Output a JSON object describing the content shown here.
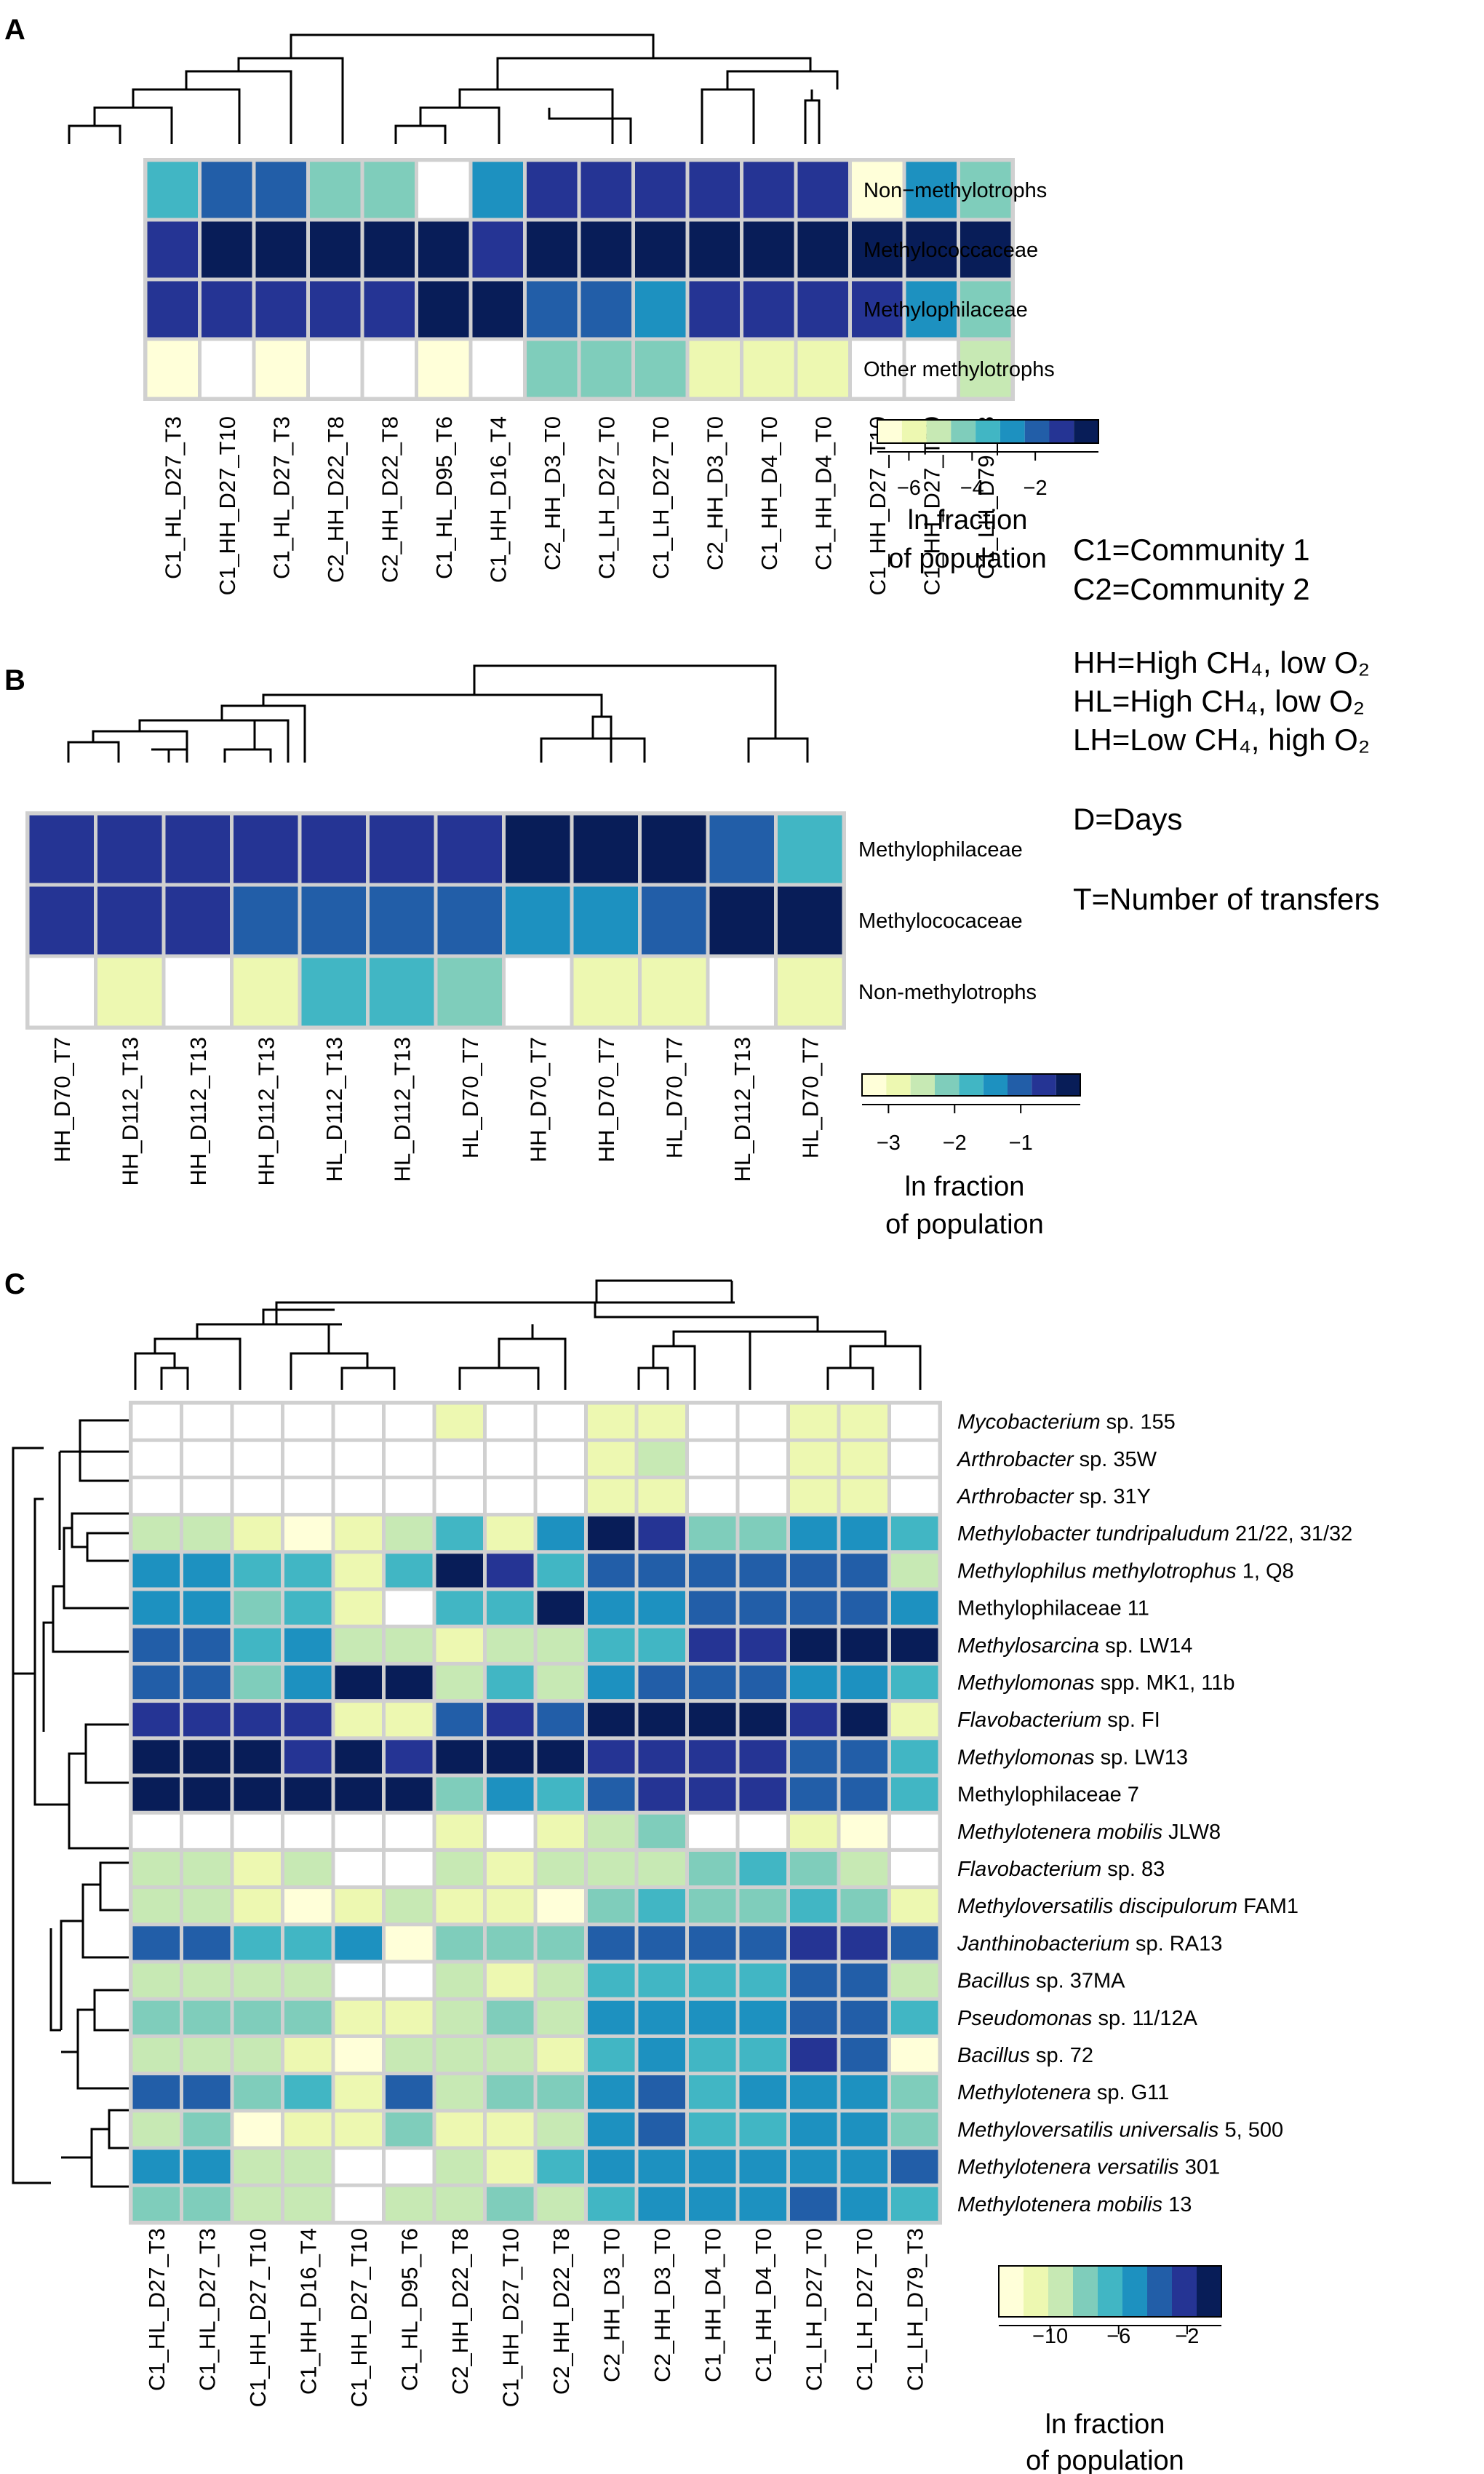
{
  "figure": {
    "key_lines": [
      "C1=Community 1",
      "C2=Community 2",
      "HH=High CH₄, low O₂",
      "HL=High CH₄, low O₂",
      "LH=Low CH₄, high O₂",
      "D=Days",
      "T=Number of transfers"
    ],
    "legend_title_1": "ln fraction",
    "legend_title_2": "of population",
    "palette": [
      "#ffffd9",
      "#edf8b1",
      "#c7e9b4",
      "#7fcdbb",
      "#41b6c4",
      "#1d91c0",
      "#225ea8",
      "#253494",
      "#081d58"
    ]
  },
  "chart_data": [
    {
      "panel": "A",
      "type": "heatmap",
      "columns": [
        "C1_HL_D27_T3",
        "C1_HH_D27_T10",
        "C1_HL_D27_T3",
        "C2_HH_D22_T8",
        "C2_HH_D22_T8",
        "C1_HL_D95_T6",
        "C1_HH_D16_T4",
        "C2_HH_D3_T0",
        "C1_LH_D27_T0",
        "C1_LH_D27_T0",
        "C2_HH_D3_T0",
        "C1_HH_D4_T0",
        "C1_HH_D4_T0",
        "C1_HH_D27_T10",
        "C1_HH_D27_T10",
        "C1_LH_D79_T3"
      ],
      "rows": [
        "Non−methylotrophs",
        "Methylococcaceae",
        "Methylophilaceae",
        "Other methylotrophs"
      ],
      "colorbar": {
        "ticks": [
          -6,
          -4,
          -2
        ],
        "vmin": -7,
        "vmax": 0
      },
      "values": [
        [
          -3.3,
          -1.8,
          -1.8,
          -4.1,
          -3.9,
          -7.0,
          -2.8,
          -1.1,
          -1.1,
          -1.0,
          -1.0,
          -1.1,
          -1.0,
          -6.3,
          -2.8,
          -4.6
        ],
        [
          -0.9,
          -0.3,
          -0.6,
          -0.7,
          -0.3,
          -0.5,
          -0.8,
          -0.3,
          -0.3,
          -0.3,
          -0.3,
          -0.4,
          -0.5,
          -0.3,
          -0.3,
          -0.3
        ],
        [
          -1.0,
          -0.9,
          -0.9,
          -0.9,
          -0.9,
          -0.3,
          -0.2,
          -1.7,
          -1.6,
          -2.8,
          -1.0,
          -1.0,
          -1.0,
          -0.8,
          -2.8,
          -4.6
        ],
        [
          -6.3,
          -7.0,
          -6.3,
          -7.0,
          -7.0,
          -6.3,
          -7.0,
          -4.6,
          -4.0,
          -4.6,
          -5.6,
          -6.2,
          -5.8,
          -7.0,
          -7.0,
          -4.7
        ]
      ]
    },
    {
      "panel": "B",
      "type": "heatmap",
      "columns": [
        "HH_D70_T7",
        "HH_D112_T13",
        "HH_D112_T13",
        "HH_D112_T13",
        "HL_D112_T13",
        "HL_D112_T13",
        "HL_D70_T7",
        "HH_D70_T7",
        "HH_D70_T7",
        "HL_D70_T7",
        "HL_D112_T13",
        "HL_D70_T7"
      ],
      "rows": [
        "Methylophilaceae",
        "Methylococaceae",
        "Non-methylotrophs"
      ],
      "colorbar": {
        "ticks": [
          -3,
          -2,
          -1
        ],
        "vmin": -3.4,
        "vmax": -0.1
      },
      "values": [
        [
          -0.5,
          -0.5,
          -0.5,
          -0.5,
          -0.5,
          -0.5,
          -0.5,
          -0.15,
          -0.15,
          -0.15,
          -0.9,
          -1.7
        ],
        [
          -0.5,
          -0.5,
          -0.5,
          -0.9,
          -0.9,
          -0.9,
          -0.9,
          -1.45,
          -1.45,
          -0.9,
          -0.15,
          -0.15
        ],
        [
          -3.4,
          -2.7,
          -3.4,
          -2.7,
          -1.75,
          -1.75,
          -2.15,
          -3.4,
          -2.7,
          -2.7,
          -3.4,
          -2.95
        ]
      ]
    },
    {
      "panel": "C",
      "type": "heatmap",
      "columns": [
        "C1_HL_D27_T3",
        "C1_HL_D27_T3",
        "C1_HH_D27_T10",
        "C1_HH_D16_T4",
        "C1_HH_D27_T10",
        "C1_HL_D95_T6",
        "C2_HH_D22_T8",
        "C1_HH_D27_T10",
        "C2_HH_D22_T8",
        "C2_HH_D3_T0",
        "C2_HH_D3_T0",
        "C1_HH_D4_T0",
        "C1_HH_D4_T0",
        "C1_LH_D27_T0",
        "C1_LH_D27_T0",
        "C1_LH_D79_T3"
      ],
      "rows": [
        {
          "name": "Mycobacterium",
          "suffix": " sp. 155"
        },
        {
          "name": "Arthrobacter",
          "suffix": " sp. 35W"
        },
        {
          "name": "Arthrobacter",
          "suffix": " sp. 31Y"
        },
        {
          "name": "Methylobacter tundripaludum",
          "suffix": " 21/22, 31/32"
        },
        {
          "name": "Methylophilus methylotrophus",
          "suffix": " 1, Q8"
        },
        {
          "name": "",
          "suffix": "Methylophilaceae 11"
        },
        {
          "name": "Methylosarcina",
          "suffix": " sp. LW14"
        },
        {
          "name": "Methylomonas",
          "suffix": " spp. MK1, 11b"
        },
        {
          "name": "Flavobacterium",
          "suffix": " sp. FI"
        },
        {
          "name": "Methylomonas",
          "suffix": " sp. LW13"
        },
        {
          "name": "",
          "suffix": "Methylophilaceae 7"
        },
        {
          "name": "Methylotenera mobilis",
          "suffix": " JLW8"
        },
        {
          "name": "Flavobacterium",
          "suffix": " sp. 83"
        },
        {
          "name": "Methyloversatilis discipulorum",
          "suffix": " FAM1"
        },
        {
          "name": "Janthinobacterium",
          "suffix": " sp. RA13"
        },
        {
          "name": "Bacillus",
          "suffix": " sp. 37MA"
        },
        {
          "name": "Pseudomonas",
          "suffix": " sp. 11/12A"
        },
        {
          "name": "Bacillus",
          "suffix": " sp. 72"
        },
        {
          "name": "Methylotenera",
          "suffix": " sp. G11"
        },
        {
          "name": "Methyloversatilis universalis",
          "suffix": " 5, 500"
        },
        {
          "name": "Methylotenera versatilis",
          "suffix": " 301"
        },
        {
          "name": "Methylotenera mobilis",
          "suffix": " 13"
        }
      ],
      "colorbar": {
        "ticks": [
          -10,
          -6,
          -2
        ],
        "vmin": -13,
        "vmax": 0
      },
      "values": [
        [
          -13,
          -13,
          -13,
          -13,
          -13,
          -13,
          -11.5,
          -13,
          -13,
          -11.5,
          -11.5,
          -13,
          -13,
          -11,
          -11.5,
          -13
        ],
        [
          -13,
          -13,
          -13,
          -13,
          -13,
          -13,
          -13,
          -13,
          -13,
          -10.5,
          -9,
          -13,
          -13,
          -11,
          -11.5,
          -13
        ],
        [
          -13,
          -13,
          -13,
          -13,
          -13,
          -13,
          -13,
          -13,
          -13,
          -11,
          -11,
          -13,
          -13,
          -11.5,
          -11.5,
          -13
        ],
        [
          -9,
          -9,
          -11,
          -12,
          -10.5,
          -10,
          -6,
          -10.5,
          -4.5,
          -0.5,
          -2,
          -7.5,
          -7.5,
          -4.5,
          -5,
          -7
        ],
        [
          -4.5,
          -4.5,
          -7,
          -6,
          -10.5,
          -6,
          -0.5,
          -2,
          -6.5,
          -3.5,
          -4,
          -3.5,
          -3.5,
          -3.5,
          -3,
          -9
        ],
        [
          -4.5,
          -4.5,
          -7.5,
          -7,
          -10.5,
          -13,
          -6,
          -7,
          -0.5,
          -5,
          -5,
          -3.5,
          -3.5,
          -3,
          -3,
          -5
        ],
        [
          -3.5,
          -4,
          -6,
          -5,
          -10,
          -10,
          -11.5,
          -10,
          -9.5,
          -6.5,
          -6.5,
          -2,
          -2,
          -0.5,
          -0.5,
          -0.5
        ],
        [
          -4,
          -3,
          -7.5,
          -5.5,
          -0.5,
          -0.5,
          -9,
          -6,
          -9,
          -4.5,
          -3,
          -4,
          -3,
          -4.5,
          -4.5,
          -6
        ],
        [
          -2,
          -2,
          -2.5,
          -1.5,
          -10.5,
          -10.5,
          -3,
          -2,
          -3,
          -0.5,
          -0.5,
          -0.5,
          -0.5,
          -1.5,
          -0.5,
          -11.5
        ],
        [
          -0.5,
          -0.5,
          -0.5,
          -1.5,
          -0.5,
          -1.5,
          -0.5,
          -0.5,
          -0.5,
          -2,
          -2,
          -2.5,
          -2.5,
          -4,
          -4,
          -6
        ],
        [
          -0.5,
          -0.5,
          -0.5,
          -0.5,
          -0.5,
          -0.5,
          -8,
          -4.5,
          -7,
          -3,
          -2.5,
          -2,
          -1.5,
          -4,
          -4,
          -6
        ],
        [
          -13,
          -13,
          -13,
          -13,
          -13,
          -13,
          -11.5,
          -13,
          -11.5,
          -9,
          -8,
          -13,
          -13,
          -11.5,
          -12,
          -13
        ],
        [
          -9.5,
          -9.5,
          -11,
          -9.5,
          -13,
          -13,
          -10,
          -10.5,
          -10,
          -9,
          -9,
          -8,
          -7,
          -8.5,
          -9.5,
          -13
        ],
        [
          -9.5,
          -9.5,
          -11,
          -12,
          -11.5,
          -9.5,
          -11,
          -10.5,
          -12,
          -7.5,
          -7,
          -7.5,
          -7.5,
          -6.5,
          -7.5,
          -11.5
        ],
        [
          -3.5,
          -3,
          -6.5,
          -7,
          -5,
          -12,
          -7.5,
          -8,
          -7.5,
          -4,
          -3.5,
          -4,
          -3.5,
          -2.5,
          -2.5,
          -3.5
        ],
        [
          -9.5,
          -9.5,
          -10,
          -9.5,
          -13,
          -13,
          -10,
          -10.5,
          -10,
          -6.5,
          -6,
          -7,
          -7,
          -4,
          -4,
          -9
        ],
        [
          -8,
          -8,
          -8,
          -8,
          -11.5,
          -11,
          -9,
          -8,
          -9,
          -5,
          -4.5,
          -5.5,
          -5.5,
          -3,
          -3.5,
          -7
        ],
        [
          -9.5,
          -9.5,
          -9.5,
          -11.5,
          -12,
          -10,
          -9,
          -9.5,
          -10.5,
          -6.5,
          -4.5,
          -6.5,
          -6.5,
          -2.5,
          -4,
          -12
        ],
        [
          -4,
          -4,
          -7.5,
          -7,
          -11.5,
          -3.5,
          -9,
          -7.5,
          -8,
          -5,
          -3.5,
          -6,
          -5,
          -5,
          -4.5,
          -8
        ],
        [
          -9.5,
          -8,
          -12,
          -11.5,
          -11,
          -8,
          -10.5,
          -11,
          -10,
          -4.5,
          -3,
          -6,
          -6.5,
          -4.5,
          -4.5,
          -8
        ],
        [
          -4.5,
          -5,
          -9,
          -9.5,
          -13,
          -13,
          -9.5,
          -11,
          -6,
          -5.5,
          -5.5,
          -5,
          -5,
          -4.5,
          -4.5,
          -3
        ],
        [
          -7.5,
          -7.5,
          -9.5,
          -9.5,
          -13,
          -10,
          -9,
          -8,
          -9.5,
          -6,
          -5.5,
          -5.5,
          -5.5,
          -3.5,
          -5,
          -7
        ]
      ]
    }
  ]
}
